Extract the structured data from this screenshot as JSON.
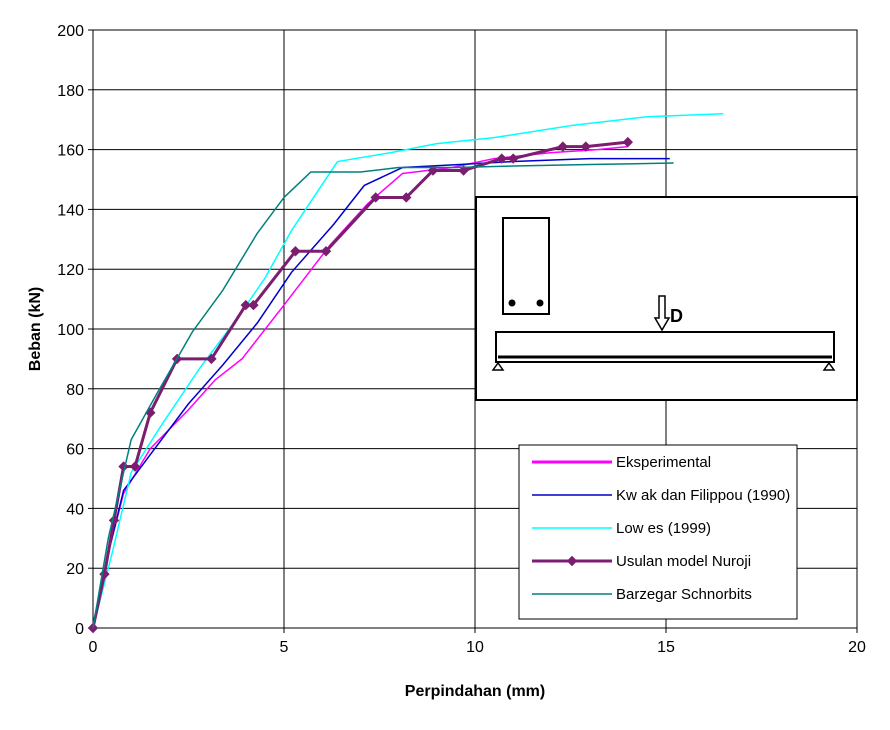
{
  "chart_data": {
    "type": "line",
    "title": "",
    "xlabel": "Perpindahan (mm)",
    "ylabel": "Beban (kN)",
    "xlim": [
      0,
      20
    ],
    "ylim": [
      0,
      200
    ],
    "x_ticks": [
      0,
      5,
      10,
      15,
      20
    ],
    "y_ticks": [
      0,
      20,
      40,
      60,
      80,
      100,
      120,
      140,
      160,
      180,
      200
    ],
    "grid": true,
    "legend_position": "bottom-right",
    "series": [
      {
        "name": "Eksperimental",
        "color": "#FF00FF",
        "markers": false,
        "x": [
          0,
          0.4,
          0.8,
          1.5,
          2.5,
          3.2,
          3.9,
          5.0,
          6.2,
          7.2,
          8.1,
          9.4,
          10.5,
          12.0,
          13.2,
          14.0
        ],
        "y": [
          0,
          25,
          45,
          60,
          73,
          83,
          90,
          108,
          128,
          142,
          152,
          154,
          157,
          159,
          160,
          161
        ]
      },
      {
        "name": "Kw ak dan Filippou (1990)",
        "color": "#0000CC",
        "markers": false,
        "x": [
          0,
          0.4,
          0.8,
          1.5,
          2.5,
          3.4,
          4.3,
          5.2,
          6.3,
          7.1,
          8.1,
          9.6,
          11.0,
          13.0,
          15.1
        ],
        "y": [
          0,
          25,
          46,
          58,
          75,
          88,
          102,
          119,
          135,
          148,
          154,
          155,
          156,
          157,
          157
        ]
      },
      {
        "name": "Low es (1999)",
        "color": "#00FFFF",
        "markers": false,
        "x": [
          0,
          0.5,
          1.0,
          1.8,
          2.8,
          3.8,
          4.5,
          5.2,
          6.4,
          7.8,
          9.0,
          10.5,
          12.5,
          14.5,
          16.5
        ],
        "y": [
          0,
          25,
          52,
          68,
          87,
          104,
          117,
          133,
          156,
          159,
          162,
          164,
          168,
          171,
          172
        ]
      },
      {
        "name": "Usulan model Nuroji",
        "color": "#7B1E6F",
        "markers": true,
        "x": [
          0,
          0.3,
          0.55,
          0.8,
          1.1,
          1.5,
          2.2,
          3.1,
          4.0,
          4.2,
          5.3,
          6.1,
          7.4,
          8.2,
          8.9,
          9.7,
          10.7,
          11.0,
          12.3,
          12.9,
          14.0
        ],
        "y": [
          0,
          18,
          36,
          54,
          54,
          72,
          90,
          90,
          108,
          108,
          126,
          126,
          144,
          144,
          153,
          153,
          157,
          157,
          161,
          161,
          162.5
        ]
      },
      {
        "name": "Barzegar Schnorbits",
        "color": "#008080",
        "markers": false,
        "x": [
          0,
          0.4,
          1.0,
          1.7,
          2.6,
          3.4,
          4.3,
          5.0,
          5.7,
          7.0,
          8.0,
          9.5,
          11.0,
          13.0,
          15.2
        ],
        "y": [
          0,
          30,
          63,
          79,
          99,
          113,
          132,
          144,
          152.5,
          152.5,
          154,
          154,
          154.5,
          155,
          155.5
        ]
      }
    ],
    "inset": {
      "load_label": "D"
    }
  }
}
